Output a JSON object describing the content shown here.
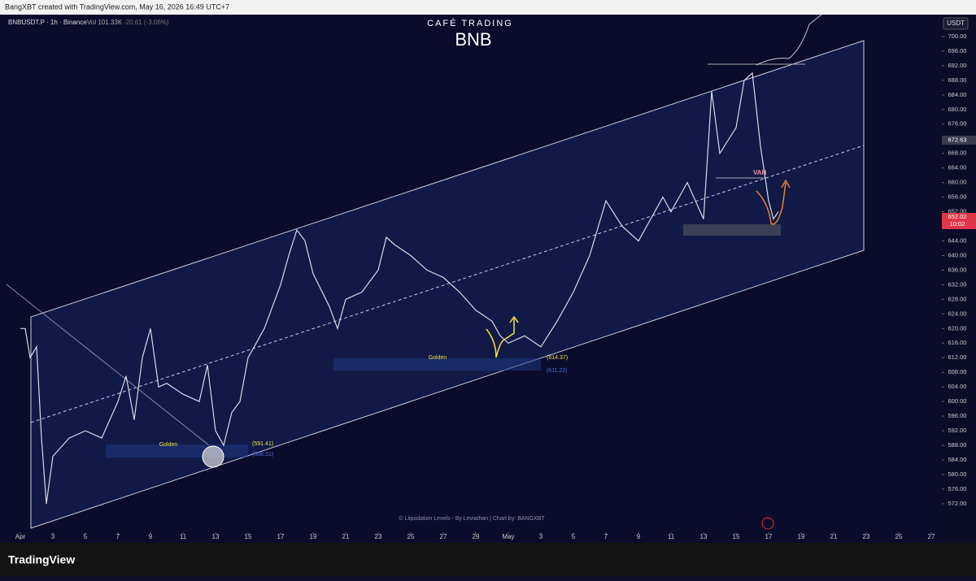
{
  "header": {
    "credit": "BangXBT created with TradingView.com, May 16, 2026 16:49 UTC+7",
    "symbol": "BNBUSDT.P · 1h · Binance",
    "volume": "Vol 101.33K",
    "change": "-20.61 (-3.06%)"
  },
  "brand": {
    "subtitle": "CAFÉ TRADING",
    "name": "BNB"
  },
  "annotations": {
    "golden_1": "Golden",
    "level_1": "(591.41)",
    "level_1b": "(588.31)",
    "golden_2": "Golden",
    "level_2": "(614.37)",
    "level_2b": "(611.22)",
    "vah": "VAH",
    "credit": "© Liquidation Levels - By Leviathan | Chart by: BANGXBT"
  },
  "toolbar": {
    "currency": "USDT",
    "last_price": "652.02",
    "countdown": "10:02",
    "marker_price": "672.63",
    "logo": "TradingView"
  },
  "chart_data": {
    "type": "line",
    "color": "#d9d9e6",
    "x": [
      0,
      0.3,
      0.6,
      1,
      1.3,
      1.6,
      2,
      3,
      4,
      5,
      6,
      6.5,
      7,
      7.5,
      8,
      8.5,
      9,
      10,
      11,
      11.5,
      12,
      12.5,
      13,
      13.5,
      14,
      15,
      15.5,
      16,
      16.5,
      17,
      17.5,
      18,
      19,
      19.5,
      20,
      21,
      22,
      22.5,
      23,
      24,
      25,
      26,
      27,
      28,
      29,
      29.5,
      30,
      31,
      32,
      33,
      34,
      35,
      36,
      37,
      38,
      39,
      39.5,
      40,
      41,
      42,
      42.5,
      43,
      44,
      44.5,
      45,
      45.5,
      46,
      46.3,
      46.6
    ],
    "values": [
      620,
      620,
      612,
      615,
      590,
      572,
      585,
      590,
      592,
      590,
      600,
      607,
      595,
      612,
      620,
      604,
      605,
      602,
      600,
      610,
      592,
      588,
      597,
      600,
      612,
      620,
      626,
      632,
      640,
      647,
      644,
      635,
      626,
      620,
      628,
      630,
      636,
      645,
      643,
      640,
      636,
      634,
      630,
      625,
      622,
      618,
      616,
      618,
      615,
      622,
      630,
      640,
      655,
      648,
      644,
      652,
      656,
      652,
      660,
      650,
      685,
      668,
      675,
      688,
      690,
      670,
      655,
      650,
      652
    ],
    "xlim": [
      -1.25,
      56.65
    ],
    "ylim": [
      565.3,
      706
    ],
    "xticks": [
      {
        "value": 0,
        "label": "Apr"
      },
      {
        "value": 2,
        "label": "3"
      },
      {
        "value": 4,
        "label": "5"
      },
      {
        "value": 6,
        "label": "7"
      },
      {
        "value": 8,
        "label": "9"
      },
      {
        "value": 10,
        "label": "11"
      },
      {
        "value": 12,
        "label": "13"
      },
      {
        "value": 14,
        "label": "15"
      },
      {
        "value": 16,
        "label": "17"
      },
      {
        "value": 18,
        "label": "19"
      },
      {
        "value": 20,
        "label": "21"
      },
      {
        "value": 22,
        "label": "23"
      },
      {
        "value": 24,
        "label": "25"
      },
      {
        "value": 26,
        "label": "27"
      },
      {
        "value": 28,
        "label": "29"
      },
      {
        "value": 30,
        "label": "May"
      },
      {
        "value": 32,
        "label": "3"
      },
      {
        "value": 34,
        "label": "5"
      },
      {
        "value": 36,
        "label": "7"
      },
      {
        "value": 38,
        "label": "9"
      },
      {
        "value": 40,
        "label": "11"
      },
      {
        "value": 42,
        "label": "13"
      },
      {
        "value": 44,
        "label": "15"
      },
      {
        "value": 46,
        "label": "17"
      },
      {
        "value": 48,
        "label": "19"
      },
      {
        "value": 50,
        "label": "21"
      },
      {
        "value": 52,
        "label": "23"
      },
      {
        "value": 54,
        "label": "25"
      },
      {
        "value": 56,
        "label": "27"
      }
    ],
    "yticks": [
      {
        "value": 700,
        "label": "700.00"
      },
      {
        "value": 696,
        "label": "696.00"
      },
      {
        "value": 692,
        "label": "692.00"
      },
      {
        "value": 688,
        "label": "688.00"
      },
      {
        "value": 684,
        "label": "684.00"
      },
      {
        "value": 680,
        "label": "680.00"
      },
      {
        "value": 676,
        "label": "676.00"
      },
      {
        "value": 672,
        "label": "672.00"
      },
      {
        "value": 668,
        "label": "668.00"
      },
      {
        "value": 664,
        "label": "664.00"
      },
      {
        "value": 660,
        "label": "660.00"
      },
      {
        "value": 656,
        "label": "656.00"
      },
      {
        "value": 652,
        "label": "652.00"
      },
      {
        "value": 648,
        "label": "648.00"
      },
      {
        "value": 644,
        "label": "644.00"
      },
      {
        "value": 640,
        "label": "640.00"
      },
      {
        "value": 636,
        "label": "636.00"
      },
      {
        "value": 632,
        "label": "632.00"
      },
      {
        "value": 628,
        "label": "628.00"
      },
      {
        "value": 624,
        "label": "624.00"
      },
      {
        "value": 620,
        "label": "620.00"
      },
      {
        "value": 616,
        "label": "616.00"
      },
      {
        "value": 612,
        "label": "612.00"
      },
      {
        "value": 608,
        "label": "608.00"
      },
      {
        "value": 604,
        "label": "604.00"
      },
      {
        "value": 600,
        "label": "600.00"
      },
      {
        "value": 596,
        "label": "596.00"
      },
      {
        "value": 592,
        "label": "592.00"
      },
      {
        "value": 588,
        "label": "588.00"
      },
      {
        "value": 584,
        "label": "584.00"
      },
      {
        "value": 580,
        "label": "580.00"
      },
      {
        "value": 576,
        "label": "576.00"
      },
      {
        "value": 572,
        "label": "572.00"
      }
    ]
  }
}
